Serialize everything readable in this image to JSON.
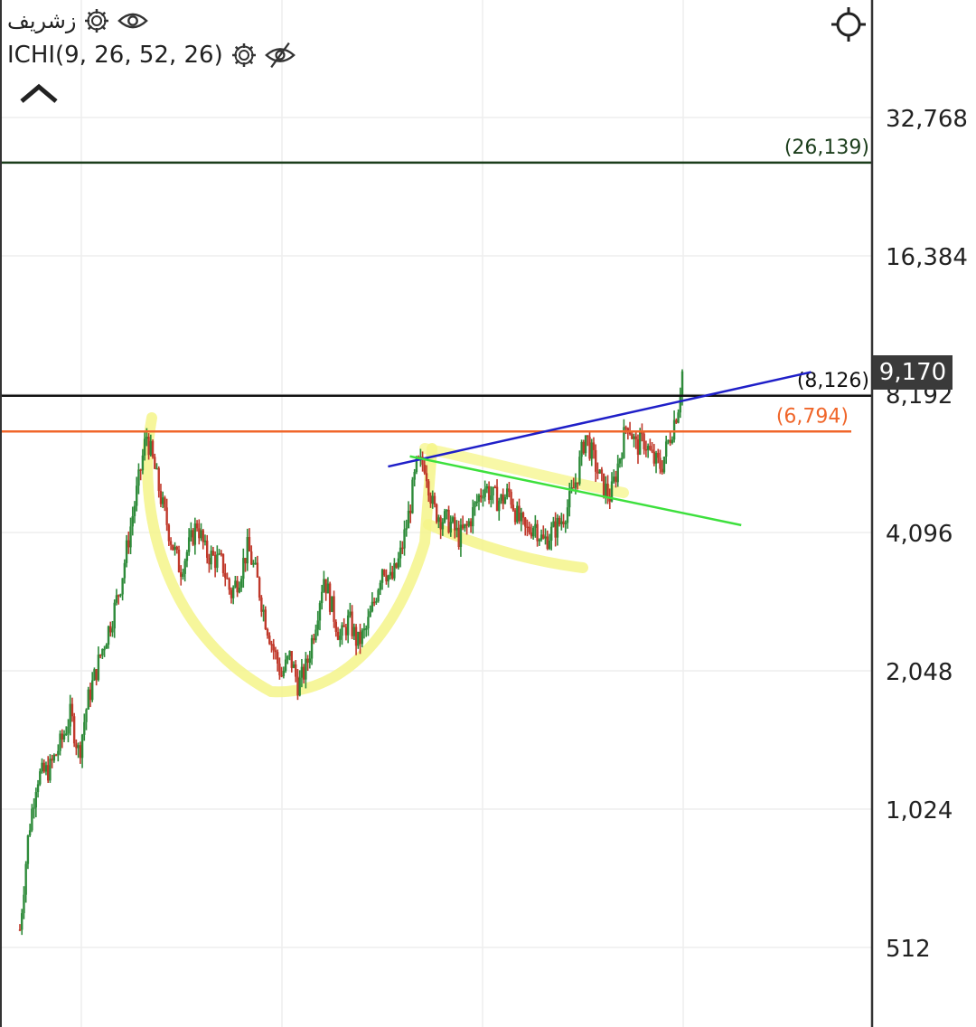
{
  "header": {
    "symbol": "زشريف",
    "indicator": "ICHI(9, 26, 52, 26)",
    "icons": [
      "gear-icon",
      "eye-icon",
      "gear-icon",
      "eye-off-icon",
      "chevron-up-icon",
      "crosshair-icon"
    ]
  },
  "last_price_badge": "9,170",
  "colors": {
    "up": "#2e8b3a",
    "down": "#c0392b",
    "orange": "#f0662a",
    "green_level": "#1b3d1b",
    "blue_trend": "#1f1fc8",
    "green_trend": "#3de03d",
    "highlight": "#f5f58a",
    "black_level": "#111111"
  },
  "chart_data": {
    "type": "candlestick",
    "y_scale": "log2",
    "y_ticks": [
      "32,768",
      "16,384",
      "8,192",
      "4,096",
      "2,048",
      "1,024",
      "512"
    ],
    "y_tick_values": [
      32768,
      16384,
      8192,
      4096,
      2048,
      1024,
      512
    ],
    "horizontal_levels": [
      {
        "value": 26139,
        "label": "(26,139)",
        "color": "#1b3d1b"
      },
      {
        "value": 8126,
        "label": "(8,126)",
        "color": "#111111"
      },
      {
        "value": 6794,
        "label": "(6,794)",
        "color": "#f0662a"
      }
    ],
    "price_path": [
      [
        0.0,
        560
      ],
      [
        0.01,
        900
      ],
      [
        0.02,
        1200
      ],
      [
        0.035,
        1250
      ],
      [
        0.05,
        1450
      ],
      [
        0.06,
        1650
      ],
      [
        0.07,
        1350
      ],
      [
        0.08,
        1750
      ],
      [
        0.095,
        2200
      ],
      [
        0.11,
        2700
      ],
      [
        0.12,
        3200
      ],
      [
        0.13,
        4100
      ],
      [
        0.14,
        5200
      ],
      [
        0.15,
        6700
      ],
      [
        0.16,
        5600
      ],
      [
        0.17,
        4600
      ],
      [
        0.18,
        3900
      ],
      [
        0.19,
        3400
      ],
      [
        0.2,
        3800
      ],
      [
        0.21,
        4300
      ],
      [
        0.22,
        3700
      ],
      [
        0.23,
        3600
      ],
      [
        0.24,
        3500
      ],
      [
        0.25,
        3000
      ],
      [
        0.26,
        3300
      ],
      [
        0.27,
        3800
      ],
      [
        0.28,
        3300
      ],
      [
        0.29,
        2700
      ],
      [
        0.3,
        2300
      ],
      [
        0.31,
        2000
      ],
      [
        0.32,
        2200
      ],
      [
        0.33,
        1900
      ],
      [
        0.34,
        2100
      ],
      [
        0.35,
        2600
      ],
      [
        0.36,
        3300
      ],
      [
        0.37,
        2800
      ],
      [
        0.38,
        2400
      ],
      [
        0.39,
        2650
      ],
      [
        0.4,
        2350
      ],
      [
        0.41,
        2500
      ],
      [
        0.42,
        2900
      ],
      [
        0.43,
        3500
      ],
      [
        0.44,
        3200
      ],
      [
        0.45,
        3600
      ],
      [
        0.46,
        4400
      ],
      [
        0.47,
        5700
      ],
      [
        0.48,
        5800
      ],
      [
        0.49,
        4600
      ],
      [
        0.5,
        4400
      ],
      [
        0.51,
        4300
      ],
      [
        0.52,
        4000
      ],
      [
        0.53,
        4200
      ],
      [
        0.54,
        4700
      ],
      [
        0.55,
        5200
      ],
      [
        0.56,
        4900
      ],
      [
        0.57,
        4800
      ],
      [
        0.58,
        5000
      ],
      [
        0.59,
        4400
      ],
      [
        0.6,
        4100
      ],
      [
        0.61,
        4300
      ],
      [
        0.62,
        3900
      ],
      [
        0.63,
        4100
      ],
      [
        0.64,
        4300
      ],
      [
        0.65,
        4700
      ],
      [
        0.66,
        5400
      ],
      [
        0.67,
        6700
      ],
      [
        0.68,
        5900
      ],
      [
        0.69,
        5200
      ],
      [
        0.7,
        4900
      ],
      [
        0.71,
        5900
      ],
      [
        0.72,
        7200
      ],
      [
        0.73,
        6300
      ],
      [
        0.74,
        6500
      ],
      [
        0.75,
        5900
      ],
      [
        0.76,
        5700
      ],
      [
        0.77,
        6600
      ],
      [
        0.78,
        7700
      ],
      [
        0.785,
        9170
      ]
    ],
    "trendlines": [
      {
        "name": "blue",
        "from": [
          0.445,
          5700
        ],
        "to": [
          0.93,
          9150
        ]
      },
      {
        "name": "green",
        "from": [
          0.47,
          6000
        ],
        "to": [
          0.85,
          4250
        ]
      }
    ],
    "last_price": 9170
  }
}
